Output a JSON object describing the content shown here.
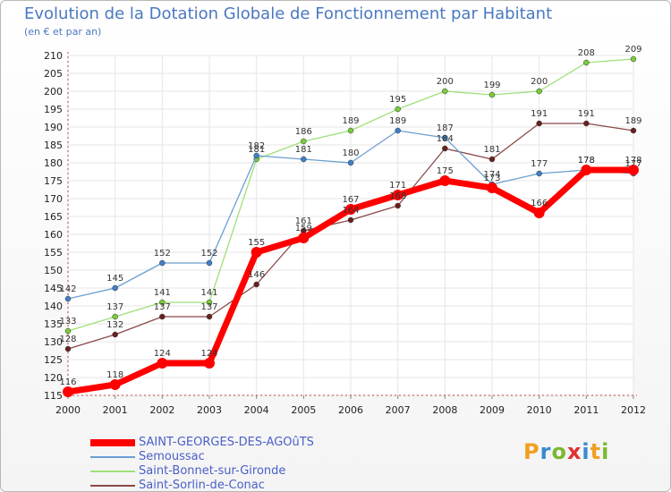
{
  "title": "Evolution de la Dotation Globale de Fonctionnement par Habitant",
  "subtitle": "(en € et par an)",
  "logo": {
    "letters": [
      "P",
      "r",
      "o",
      "x",
      "i",
      "t",
      "i"
    ],
    "colors": [
      "#f0a020",
      "#3a8ad0",
      "#7ab830",
      "#e03030",
      "#3a8ad0",
      "#f0a020",
      "#7ab830"
    ]
  },
  "chart_data": {
    "type": "line",
    "title": "Evolution de la Dotation Globale de Fonctionnement par Habitant",
    "ylabel": "(en € et par an)",
    "xlabel": "",
    "ylim": [
      115,
      210
    ],
    "yticks": [
      115,
      120,
      125,
      130,
      135,
      140,
      145,
      150,
      155,
      160,
      165,
      170,
      175,
      180,
      185,
      190,
      195,
      200,
      205,
      210
    ],
    "categories": [
      "2000",
      "2001",
      "2002",
      "2003",
      "2004",
      "2005",
      "2006",
      "2007",
      "2008",
      "2009",
      "2010",
      "2011",
      "2012"
    ],
    "series": [
      {
        "name": "SAINT-GEORGES-DES-AGOûTS",
        "color": "#ff0000",
        "marker": "#ff0000",
        "width": 7,
        "values": [
          116,
          118,
          124,
          124,
          155,
          159,
          167,
          171,
          175,
          173,
          166,
          178,
          178
        ]
      },
      {
        "name": "Semoussac",
        "color": "#6a9fd0",
        "marker": "#3f7fc8",
        "width": 1.3,
        "values": [
          142,
          145,
          152,
          152,
          182,
          181,
          180,
          189,
          187,
          174,
          177,
          178,
          177
        ]
      },
      {
        "name": "Saint-Bonnet-sur-Gironde",
        "color": "#9ee07a",
        "marker": "#7acc3a",
        "width": 1.3,
        "values": [
          133,
          137,
          141,
          141,
          181,
          186,
          189,
          195,
          200,
          199,
          200,
          208,
          209
        ]
      },
      {
        "name": "Saint-Sorlin-de-Conac",
        "color": "#8a4848",
        "marker": "#6a1f1f",
        "width": 1.3,
        "values": [
          128,
          132,
          137,
          137,
          146,
          161,
          164,
          168,
          184,
          181,
          191,
          191,
          189
        ]
      }
    ]
  }
}
